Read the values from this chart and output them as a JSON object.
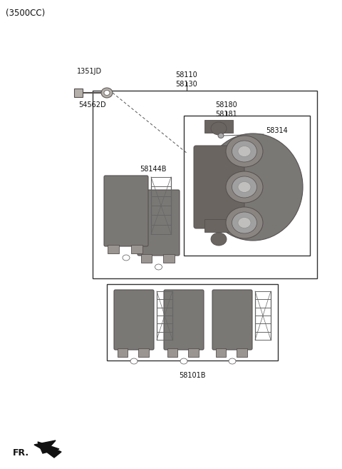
{
  "title": "(3500CC)",
  "bg_color": "#ffffff",
  "title_fontsize": 8.5,
  "label_fontsize": 7,
  "parts": {
    "top_label": "58110\n58130",
    "inner_top_label": "58180\n58181",
    "caliper_label": "58314",
    "pad_label": "58144B",
    "bolt_label": "1351JD",
    "washer_label": "54562D",
    "lower_box_label": "58101B"
  },
  "fr_label": "FR.",
  "colors": {
    "part_dark": "#7a7875",
    "part_mid": "#9a9590",
    "part_light": "#b5b0aa",
    "part_edge": "#555050",
    "box_edge": "#333333",
    "line": "#555555",
    "text": "#111111",
    "shim_line": "#666666",
    "caliper_body": "#7a7875",
    "caliper_back": "#6a6560",
    "piston_face": "#a0a0a0",
    "piston_inner": "#c0bfbd"
  }
}
